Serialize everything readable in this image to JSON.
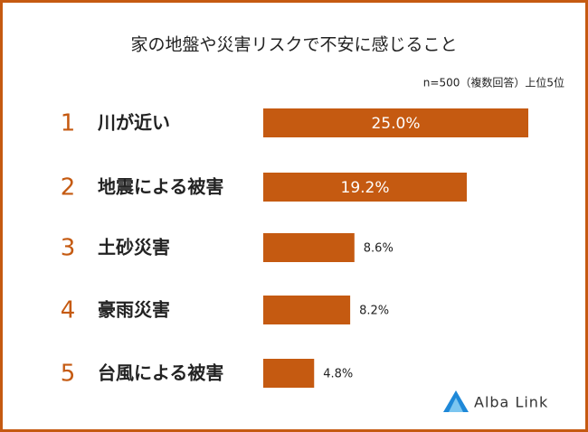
{
  "chart_data": {
    "type": "bar",
    "orientation": "horizontal",
    "title": "家の地盤や災害リスクで不安に感じること",
    "subtitle": "n=500（複数回答）上位5位",
    "ranks": [
      1,
      2,
      3,
      4,
      5
    ],
    "categories": [
      "川が近い",
      "地震による被害",
      "土砂災害",
      "豪雨災害",
      "台風による被害"
    ],
    "values": [
      25.0,
      19.2,
      8.6,
      8.2,
      4.8
    ],
    "value_labels": [
      "25.0%",
      "19.2%",
      "8.6%",
      "8.2%",
      "4.8%"
    ],
    "color": "#c55a11"
  },
  "logo": "Alba Link"
}
